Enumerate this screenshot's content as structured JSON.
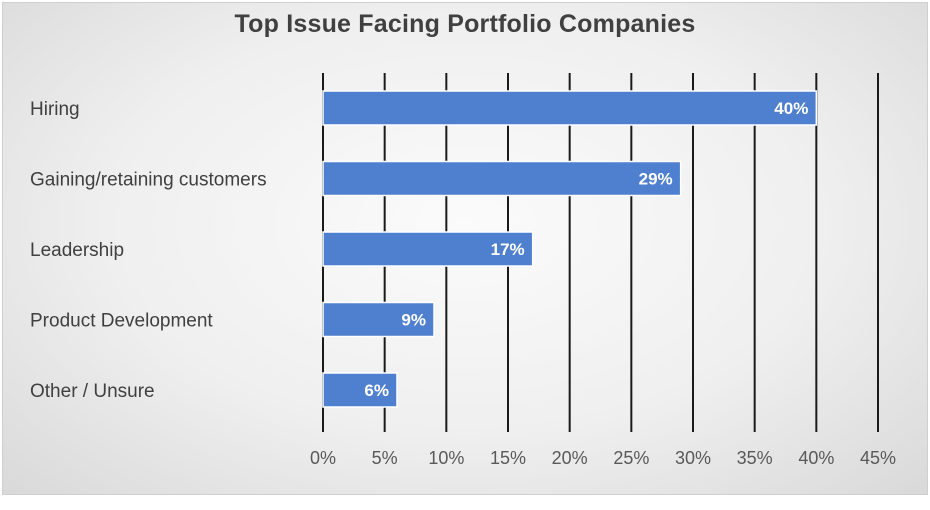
{
  "chart_data": {
    "type": "bar",
    "orientation": "horizontal",
    "title": "Top Issue Facing Portfolio Companies",
    "categories": [
      "Hiring",
      "Gaining/retaining customers",
      "Leadership",
      "Product Development",
      "Other / Unsure"
    ],
    "values": [
      40,
      29,
      17,
      9,
      6
    ],
    "data_labels": [
      "40%",
      "29%",
      "17%",
      "9%",
      "6%"
    ],
    "xlim": [
      0,
      45
    ],
    "xticks": [
      0,
      5,
      10,
      15,
      20,
      25,
      30,
      35,
      40,
      45
    ],
    "xtick_labels": [
      "0%",
      "5%",
      "10%",
      "15%",
      "20%",
      "25%",
      "30%",
      "35%",
      "40%",
      "45%"
    ],
    "xlabel": "",
    "ylabel": "",
    "grid": "vertical",
    "legend": "none",
    "bar_color": "#4f7fcf",
    "grid_color": "#1a1a1a"
  }
}
